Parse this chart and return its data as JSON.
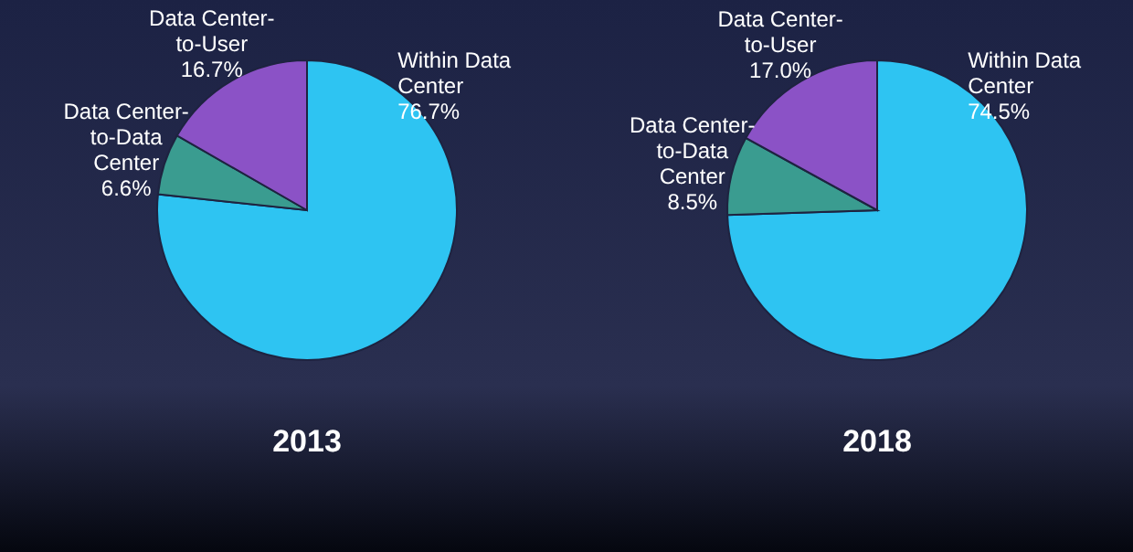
{
  "chart_data": [
    {
      "type": "pie",
      "title": "2013",
      "categories": [
        "Within Data Center",
        "Data Center-to-Data Center",
        "Data Center-to-User"
      ],
      "values": [
        76.7,
        6.6,
        16.7
      ],
      "value_labels": [
        "76.7%",
        "6.6%",
        "16.7%"
      ],
      "colors": [
        "#2ec4f2",
        "#3a9c90",
        "#8b52c6"
      ]
    },
    {
      "type": "pie",
      "title": "2018",
      "categories": [
        "Within Data Center",
        "Data Center-to-Data Center",
        "Data Center-to-User"
      ],
      "values": [
        74.5,
        8.5,
        17.0
      ],
      "value_labels": [
        "74.5%",
        "8.5%",
        "17.0%"
      ],
      "colors": [
        "#2ec4f2",
        "#3a9c90",
        "#8b52c6"
      ]
    }
  ]
}
